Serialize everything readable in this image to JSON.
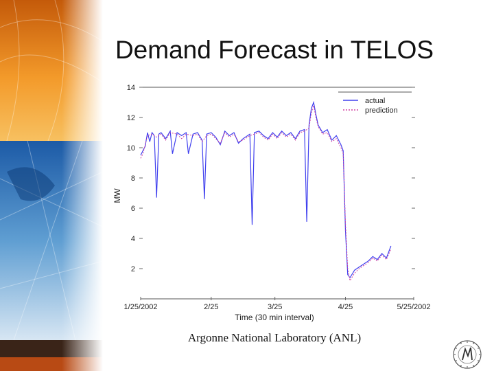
{
  "slide": {
    "title": "Demand Forecast in TELOS",
    "caption": "Argonne National Laboratory (ANL)"
  },
  "colors": {
    "actual": "#4040ee",
    "prediction": "#d040a0",
    "decor_orange": "#f08c1e",
    "decor_blue": "#1f5fa8"
  },
  "icons": [
    "globe-banner-decoration",
    "university-seal-logo"
  ],
  "chart_data": {
    "type": "line",
    "title": "",
    "xlabel": "Time (30 min interval)",
    "ylabel": "MW",
    "x_ticks": [
      "1/25/2002",
      "2/25",
      "3/25",
      "4/25",
      "5/25/2002"
    ],
    "xlim": [
      "1/25/2002",
      "5/25/2002"
    ],
    "y_ticks": [
      2,
      4,
      6,
      8,
      10,
      12,
      14
    ],
    "ylim": [
      0,
      14
    ],
    "grid": false,
    "legend_position": "top-right",
    "series": [
      {
        "name": "actual",
        "style": "solid",
        "points": [
          [
            "1/25/2002",
            9.5
          ],
          [
            "1/26/2002",
            9.8
          ],
          [
            "1/27/2002",
            10.1
          ],
          [
            "1/28/2002",
            11.0
          ],
          [
            "1/29/2002",
            10.4
          ],
          [
            "1/30/2002",
            11.0
          ],
          [
            "1/31/2002",
            10.8
          ],
          [
            "2/1/2002",
            6.7
          ],
          [
            "2/2/2002",
            10.9
          ],
          [
            "2/3/2002",
            11.0
          ],
          [
            "2/5/2002",
            10.6
          ],
          [
            "2/7/2002",
            11.1
          ],
          [
            "2/8/2002",
            9.6
          ],
          [
            "2/10/2002",
            11.0
          ],
          [
            "2/12/2002",
            10.8
          ],
          [
            "2/14/2002",
            11.0
          ],
          [
            "2/15/2002",
            9.6
          ],
          [
            "2/17/2002",
            10.9
          ],
          [
            "2/19/2002",
            11.0
          ],
          [
            "2/21/2002",
            10.5
          ],
          [
            "2/22/2002",
            6.6
          ],
          [
            "2/23/2002",
            10.9
          ],
          [
            "2/25/2002",
            11.0
          ],
          [
            "2/27/2002",
            10.7
          ],
          [
            "3/1/2002",
            10.2
          ],
          [
            "3/3/2002",
            11.1
          ],
          [
            "3/5/2002",
            10.8
          ],
          [
            "3/7/2002",
            11.0
          ],
          [
            "3/9/2002",
            10.3
          ],
          [
            "3/11/2002",
            10.6
          ],
          [
            "3/14/2002",
            10.9
          ],
          [
            "3/15/2002",
            4.9
          ],
          [
            "3/16/2002",
            11.0
          ],
          [
            "3/18/2002",
            11.1
          ],
          [
            "3/20/2002",
            10.8
          ],
          [
            "3/22/2002",
            10.6
          ],
          [
            "3/24/2002",
            11.0
          ],
          [
            "3/26/2002",
            10.7
          ],
          [
            "3/28/2002",
            11.1
          ],
          [
            "3/30/2002",
            10.8
          ],
          [
            "4/1/2002",
            11.0
          ],
          [
            "4/3/2002",
            10.6
          ],
          [
            "4/5/2002",
            11.1
          ],
          [
            "4/7/2002",
            11.2
          ],
          [
            "4/8/2002",
            5.1
          ],
          [
            "4/9/2002",
            11.5
          ],
          [
            "4/10/2002",
            12.6
          ],
          [
            "4/11/2002",
            13.0
          ],
          [
            "4/12/2002",
            12.2
          ],
          [
            "4/13/2002",
            11.5
          ],
          [
            "4/15/2002",
            11.0
          ],
          [
            "4/17/2002",
            11.2
          ],
          [
            "4/19/2002",
            10.5
          ],
          [
            "4/21/2002",
            10.8
          ],
          [
            "4/23/2002",
            10.2
          ],
          [
            "4/24/2002",
            9.8
          ],
          [
            "4/25/2002",
            4.5
          ],
          [
            "4/26/2002",
            1.6
          ],
          [
            "4/27/2002",
            1.4
          ],
          [
            "4/29/2002",
            1.9
          ],
          [
            "5/1/2002",
            2.1
          ],
          [
            "5/3/2002",
            2.3
          ],
          [
            "5/5/2002",
            2.5
          ],
          [
            "5/7/2002",
            2.8
          ],
          [
            "5/9/2002",
            2.6
          ],
          [
            "5/11/2002",
            3.0
          ],
          [
            "5/13/2002",
            2.7
          ],
          [
            "5/15/2002",
            3.5
          ]
        ]
      },
      {
        "name": "prediction",
        "style": "dashed",
        "points": [
          [
            "1/25/2002",
            9.3
          ],
          [
            "1/26/2002",
            9.6
          ],
          [
            "1/27/2002",
            10.2
          ],
          [
            "1/28/2002",
            10.8
          ],
          [
            "1/30/2002",
            10.9
          ],
          [
            "2/1/2002",
            10.7
          ],
          [
            "2/3/2002",
            10.9
          ],
          [
            "2/5/2002",
            10.5
          ],
          [
            "2/7/2002",
            11.0
          ],
          [
            "2/10/2002",
            10.9
          ],
          [
            "2/12/2002",
            10.6
          ],
          [
            "2/14/2002",
            10.9
          ],
          [
            "2/17/2002",
            10.8
          ],
          [
            "2/19/2002",
            10.9
          ],
          [
            "2/21/2002",
            10.4
          ],
          [
            "2/23/2002",
            10.8
          ],
          [
            "2/25/2002",
            10.9
          ],
          [
            "2/27/2002",
            10.6
          ],
          [
            "3/1/2002",
            10.3
          ],
          [
            "3/3/2002",
            11.0
          ],
          [
            "3/5/2002",
            10.7
          ],
          [
            "3/7/2002",
            10.9
          ],
          [
            "3/9/2002",
            10.4
          ],
          [
            "3/11/2002",
            10.5
          ],
          [
            "3/14/2002",
            10.8
          ],
          [
            "3/16/2002",
            10.9
          ],
          [
            "3/18/2002",
            11.0
          ],
          [
            "3/20/2002",
            10.7
          ],
          [
            "3/22/2002",
            10.5
          ],
          [
            "3/24/2002",
            10.9
          ],
          [
            "3/26/2002",
            10.6
          ],
          [
            "3/28/2002",
            11.0
          ],
          [
            "3/30/2002",
            10.7
          ],
          [
            "4/1/2002",
            10.9
          ],
          [
            "4/3/2002",
            10.5
          ],
          [
            "4/5/2002",
            11.0
          ],
          [
            "4/7/2002",
            11.1
          ],
          [
            "4/9/2002",
            11.3
          ],
          [
            "4/10/2002",
            12.3
          ],
          [
            "4/11/2002",
            12.8
          ],
          [
            "4/12/2002",
            12.0
          ],
          [
            "4/13/2002",
            11.4
          ],
          [
            "4/15/2002",
            10.9
          ],
          [
            "4/17/2002",
            11.0
          ],
          [
            "4/19/2002",
            10.4
          ],
          [
            "4/21/2002",
            10.6
          ],
          [
            "4/23/2002",
            10.0
          ],
          [
            "4/24/2002",
            9.6
          ],
          [
            "4/25/2002",
            5.0
          ],
          [
            "4/26/2002",
            2.0
          ],
          [
            "4/27/2002",
            1.2
          ],
          [
            "4/29/2002",
            1.7
          ],
          [
            "5/1/2002",
            2.0
          ],
          [
            "5/3/2002",
            2.2
          ],
          [
            "5/5/2002",
            2.4
          ],
          [
            "5/7/2002",
            2.7
          ],
          [
            "5/9/2002",
            2.5
          ],
          [
            "5/11/2002",
            2.9
          ],
          [
            "5/13/2002",
            2.6
          ],
          [
            "5/15/2002",
            3.3
          ]
        ]
      }
    ]
  }
}
